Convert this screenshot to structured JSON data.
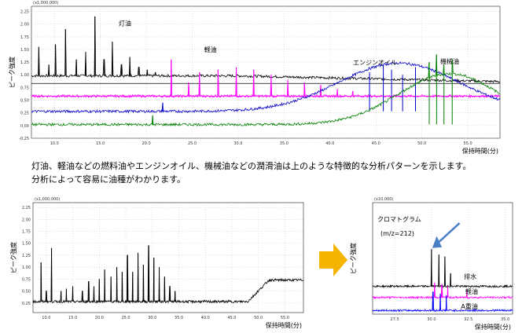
{
  "caption": {
    "line1": "灯油、軽油などの燃料油やエンジンオイル、機械油などの潤滑油は上のような特徴的な分析パターンを示します。",
    "line2": "分析によって容易に油種がわかります。"
  },
  "arrow_color": "#f5b400",
  "chart_data": [
    {
      "type": "line",
      "ylabel": "ピーク強度",
      "xlabel": "保持時間(分)",
      "scale_label": "(x1,000,000)",
      "xlim": [
        7.5,
        58.5
      ],
      "ylim": [
        -0.25,
        2.35
      ],
      "x_ticks": [
        "10.0",
        "15.0",
        "20.0",
        "25.0",
        "30.0",
        "35.0",
        "40.0",
        "45.0",
        "50.0",
        "55.0"
      ],
      "y_ticks": [
        "-0.25",
        "0.00",
        "0.25",
        "0.50",
        "0.75",
        "1.00",
        "1.25",
        "1.50",
        "1.75",
        "2.00",
        "2.25"
      ],
      "series": [
        {
          "name": "灯油",
          "color": "#000000",
          "baseline": 0.98,
          "peaks": [
            [
              8.3,
              1.55
            ],
            [
              9.4,
              1.2
            ],
            [
              10.1,
              1.6
            ],
            [
              11.2,
              1.9
            ],
            [
              12.4,
              1.3
            ],
            [
              13.4,
              1.45
            ],
            [
              14.4,
              2.15
            ],
            [
              15.4,
              1.3
            ],
            [
              16.3,
              1.65
            ],
            [
              17.3,
              1.2
            ],
            [
              18.2,
              1.35
            ],
            [
              19.2,
              1.15
            ],
            [
              20.1,
              1.1
            ],
            [
              21.0,
              1.05
            ]
          ],
          "flat_after": [
            30,
            0.85
          ]
        },
        {
          "name": "軽油",
          "color": "#ff00ff",
          "baseline": 0.58,
          "peaks": [
            [
              22.7,
              1.3
            ],
            [
              24.6,
              0.85
            ],
            [
              25.8,
              1.05
            ],
            [
              27.8,
              1.1
            ],
            [
              29.8,
              1.15
            ],
            [
              31.7,
              1.1
            ],
            [
              33.6,
              1.0
            ],
            [
              35.4,
              0.9
            ],
            [
              37.2,
              0.85
            ],
            [
              39.0,
              0.8
            ],
            [
              40.8,
              0.72
            ],
            [
              42.5,
              0.68
            ]
          ]
        },
        {
          "name": "エンジンオイル",
          "color": "#0000cc",
          "baseline": 0.28,
          "hump": [
            47.5,
            0.95,
            6.5
          ],
          "peaks": [
            [
              21.8,
              0.45
            ],
            [
              44.3,
              1.05
            ],
            [
              45.8,
              1.2
            ],
            [
              46.7,
              1.1
            ],
            [
              47.9,
              1.0
            ],
            [
              49.3,
              1.15
            ]
          ]
        },
        {
          "name": "機械油",
          "color": "#008000",
          "baseline": 0.02,
          "hump": [
            53.0,
            1.0,
            5.5
          ],
          "peaks": [
            [
              20.7,
              0.2
            ],
            [
              50.8,
              1.25
            ],
            [
              51.6,
              1.4
            ],
            [
              52.4,
              1.2
            ],
            [
              53.3,
              1.3
            ]
          ]
        }
      ],
      "hlines": [
        {
          "y": 0.83,
          "color": "#000000"
        },
        {
          "y": 0.58,
          "color": "#ff00ff"
        }
      ]
    },
    {
      "type": "line",
      "ylabel": "ピーク強度",
      "xlabel": "保持時間(分)",
      "scale_label": "(x1,000,000)",
      "xlim": [
        7.5,
        58.5
      ],
      "ylim": [
        0.05,
        2.35
      ],
      "x_ticks": [
        "10.0",
        "15.0",
        "20.0",
        "25.0",
        "30.0",
        "35.0",
        "40.0",
        "45.0",
        "50.0",
        "55.0"
      ],
      "y_ticks": [
        "0.25",
        "0.50",
        "0.75",
        "1.00",
        "1.25",
        "1.50",
        "1.75",
        "2.00",
        "2.25"
      ],
      "series": [
        {
          "name": "",
          "color": "#000000",
          "baseline": 0.28,
          "step": [
            48,
            0.45
          ],
          "peaks": [
            [
              9.0,
              1.1
            ],
            [
              10.0,
              0.5
            ],
            [
              11.0,
              1.4
            ],
            [
              12.8,
              0.5
            ],
            [
              13.8,
              0.55
            ],
            [
              15.0,
              0.6
            ],
            [
              16.8,
              0.5
            ],
            [
              18.0,
              0.7
            ],
            [
              19.0,
              0.6
            ],
            [
              20.0,
              0.75
            ],
            [
              21.0,
              0.95
            ],
            [
              22.2,
              0.8
            ],
            [
              23.3,
              1.0
            ],
            [
              24.3,
              0.9
            ],
            [
              25.3,
              1.25
            ],
            [
              26.3,
              0.9
            ],
            [
              27.3,
              1.3
            ],
            [
              28.3,
              1.05
            ],
            [
              29.3,
              1.45
            ],
            [
              30.3,
              1.2
            ],
            [
              31.3,
              1.0
            ],
            [
              32.3,
              0.8
            ],
            [
              33.3,
              0.6
            ],
            [
              34.3,
              0.5
            ]
          ]
        }
      ]
    },
    {
      "type": "line",
      "title": "クロマトグラム",
      "subtitle": "(m/z=212)",
      "ylabel": "ピーク強度",
      "xlabel": "保持時間(分)",
      "scale_label": "(x10,000)",
      "xlim": [
        26.0,
        35.5
      ],
      "ylim": [
        0,
        3.0
      ],
      "x_ticks": [
        "27.5",
        "30.0",
        "32.5",
        "35.0"
      ],
      "series": [
        {
          "name": "排水",
          "color": "#000000",
          "baseline": 0.75,
          "peaks": [
            [
              30.0,
              1.75
            ],
            [
              30.5,
              1.6
            ],
            [
              30.9,
              1.55
            ],
            [
              31.3,
              1.1
            ]
          ]
        },
        {
          "name": "軽油",
          "color": "#ff00ff",
          "baseline": 0.45,
          "peaks": [
            [
              30.2,
              0.85
            ],
            [
              30.7,
              0.8
            ],
            [
              31.1,
              0.75
            ],
            [
              32.4,
              0.65
            ]
          ]
        },
        {
          "name": "A重油",
          "color": "#0000ff",
          "baseline": 0.1,
          "peaks": [
            [
              30.1,
              0.6
            ],
            [
              30.6,
              0.55
            ],
            [
              31.0,
              0.5
            ]
          ]
        }
      ]
    }
  ]
}
